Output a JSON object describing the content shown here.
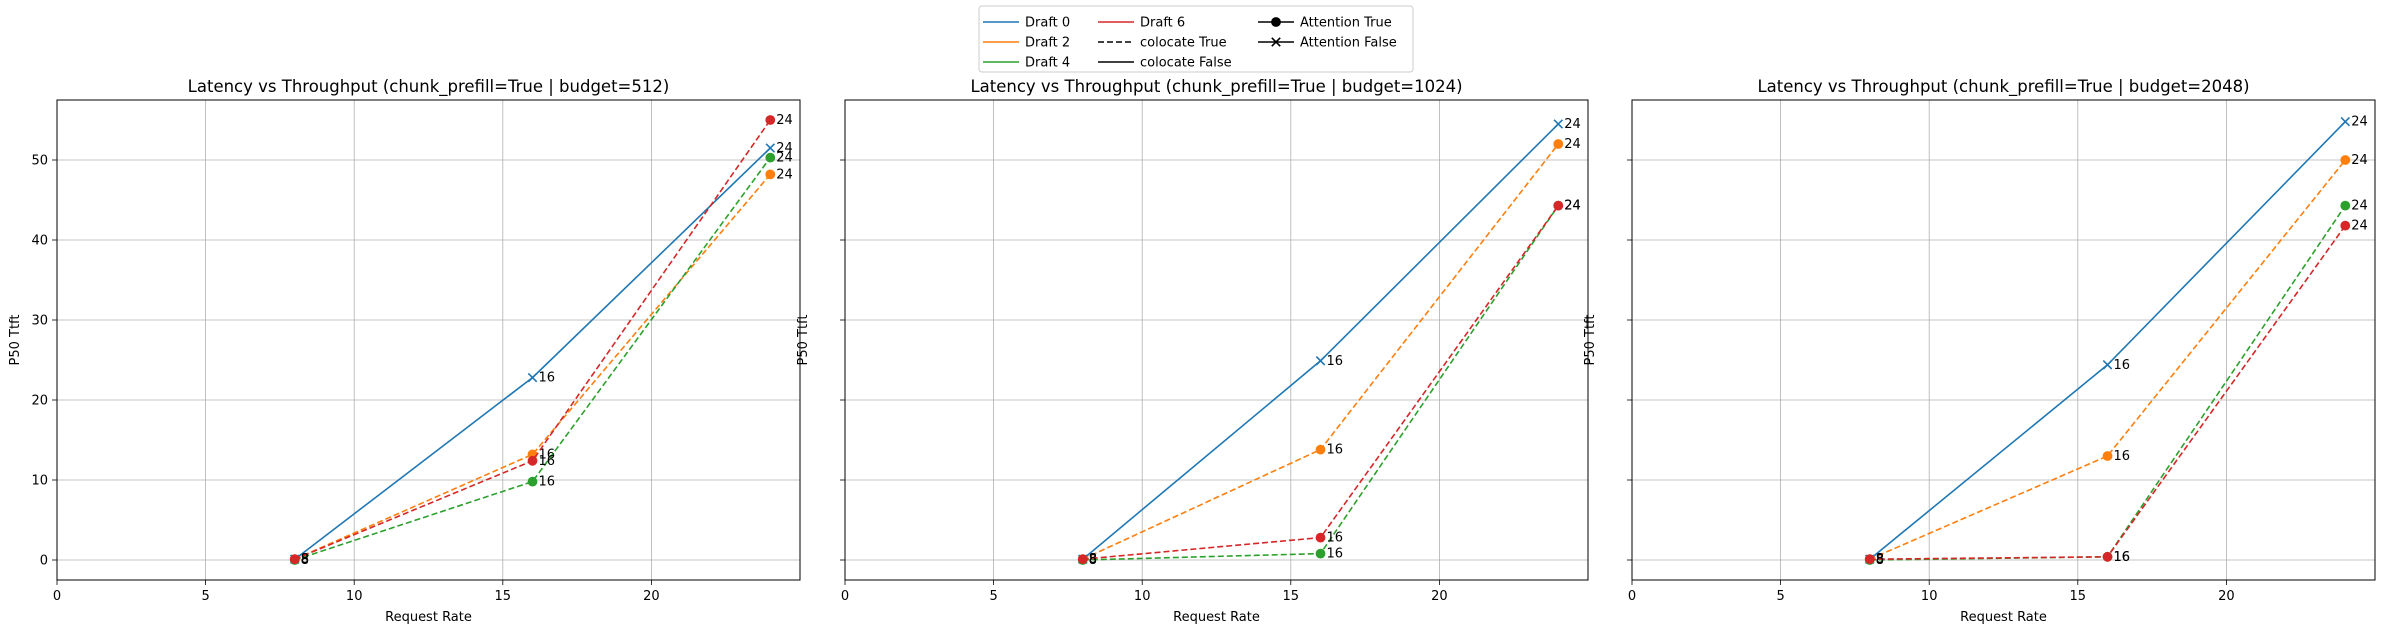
{
  "legend": {
    "placement": "top-center",
    "entries": [
      {
        "label": "Draft 0",
        "kind": "line",
        "color": "#1f77b4",
        "dash": false
      },
      {
        "label": "Draft 2",
        "kind": "line",
        "color": "#ff7f0e",
        "dash": false
      },
      {
        "label": "Draft 4",
        "kind": "line",
        "color": "#2ca02c",
        "dash": false
      },
      {
        "label": "Draft 6",
        "kind": "line",
        "color": "#d62728",
        "dash": false
      },
      {
        "label": "colocate True",
        "kind": "line",
        "color": "#000000",
        "dash": true
      },
      {
        "label": "colocate False",
        "kind": "line",
        "color": "#000000",
        "dash": false
      },
      {
        "label": "Attention True",
        "kind": "marker",
        "color": "#000000",
        "marker": "o"
      },
      {
        "label": "Attention False",
        "kind": "marker",
        "color": "#000000",
        "marker": "x"
      }
    ]
  },
  "chart_data": [
    {
      "type": "line",
      "title": "Latency vs Throughput (chunk_prefill=True | budget=512)",
      "xlabel": "Request Rate",
      "ylabel": "P50 Ttft",
      "xlim": [
        0,
        25
      ],
      "ylim": [
        -2.5,
        57.5
      ],
      "xticks": [
        0,
        5,
        10,
        15,
        20
      ],
      "yticks": [
        0,
        10,
        20,
        30,
        40,
        50
      ],
      "grid": true,
      "series": [
        {
          "name": "Draft 0",
          "color": "#1f77b4",
          "dashed": false,
          "marker": "x",
          "x": [
            8,
            16,
            24
          ],
          "y": [
            0.1,
            22.8,
            51.5
          ],
          "labels": [
            "8",
            "16",
            "24"
          ]
        },
        {
          "name": "Draft 2",
          "color": "#ff7f0e",
          "dashed": true,
          "marker": "o",
          "x": [
            8,
            16,
            24
          ],
          "y": [
            0.1,
            13.2,
            48.2
          ],
          "labels": [
            "8",
            "16",
            "24"
          ]
        },
        {
          "name": "Draft 4",
          "color": "#2ca02c",
          "dashed": true,
          "marker": "o",
          "x": [
            8,
            16,
            24
          ],
          "y": [
            0.0,
            9.8,
            50.3
          ],
          "labels": [
            "8",
            "16",
            "24"
          ]
        },
        {
          "name": "Draft 6",
          "color": "#d62728",
          "dashed": true,
          "marker": "o",
          "x": [
            8,
            16,
            24
          ],
          "y": [
            0.1,
            12.4,
            55.0
          ],
          "labels": [
            "8",
            "16",
            "24"
          ]
        }
      ]
    },
    {
      "type": "line",
      "title": "Latency vs Throughput (chunk_prefill=True | budget=1024)",
      "xlabel": "Request Rate",
      "ylabel": "P50 Ttft",
      "xlim": [
        0,
        25
      ],
      "ylim": [
        -2.5,
        57.5
      ],
      "xticks": [
        0,
        5,
        10,
        15,
        20
      ],
      "yticks": [],
      "grid": true,
      "series": [
        {
          "name": "Draft 0",
          "color": "#1f77b4",
          "dashed": false,
          "marker": "x",
          "x": [
            8,
            16,
            24
          ],
          "y": [
            0.1,
            24.9,
            54.5
          ],
          "labels": [
            "8",
            "16",
            "24"
          ]
        },
        {
          "name": "Draft 2",
          "color": "#ff7f0e",
          "dashed": true,
          "marker": "o",
          "x": [
            8,
            16,
            24
          ],
          "y": [
            0.1,
            13.8,
            52.0
          ],
          "labels": [
            "8",
            "16",
            "24"
          ]
        },
        {
          "name": "Draft 4",
          "color": "#2ca02c",
          "dashed": true,
          "marker": "o",
          "x": [
            8,
            16,
            24
          ],
          "y": [
            0.0,
            0.8,
            44.3
          ],
          "labels": [
            "8",
            "16",
            "24"
          ]
        },
        {
          "name": "Draft 6",
          "color": "#d62728",
          "dashed": true,
          "marker": "o",
          "x": [
            8,
            16,
            24
          ],
          "y": [
            0.1,
            2.8,
            44.3
          ],
          "labels": [
            "8",
            "16",
            "24"
          ]
        }
      ]
    },
    {
      "type": "line",
      "title": "Latency vs Throughput (chunk_prefill=True | budget=2048)",
      "xlabel": "Request Rate",
      "ylabel": "P50 Ttft",
      "xlim": [
        0,
        25
      ],
      "ylim": [
        -2.5,
        57.5
      ],
      "xticks": [
        0,
        5,
        10,
        15,
        20
      ],
      "yticks": [],
      "grid": true,
      "series": [
        {
          "name": "Draft 0",
          "color": "#1f77b4",
          "dashed": false,
          "marker": "x",
          "x": [
            8,
            16,
            24
          ],
          "y": [
            0.1,
            24.4,
            54.8
          ],
          "labels": [
            "8",
            "16",
            "24"
          ]
        },
        {
          "name": "Draft 2",
          "color": "#ff7f0e",
          "dashed": true,
          "marker": "o",
          "x": [
            8,
            16,
            24
          ],
          "y": [
            0.1,
            13.0,
            50.0
          ],
          "labels": [
            "8",
            "16",
            "24"
          ]
        },
        {
          "name": "Draft 4",
          "color": "#2ca02c",
          "dashed": true,
          "marker": "o",
          "x": [
            8,
            16,
            24
          ],
          "y": [
            0.0,
            0.4,
            44.3
          ],
          "labels": [
            "8",
            "16",
            "24"
          ]
        },
        {
          "name": "Draft 6",
          "color": "#d62728",
          "dashed": true,
          "marker": "o",
          "x": [
            8,
            16,
            24
          ],
          "y": [
            0.1,
            0.4,
            41.8
          ],
          "labels": [
            "8",
            "16",
            "24"
          ]
        }
      ]
    }
  ]
}
